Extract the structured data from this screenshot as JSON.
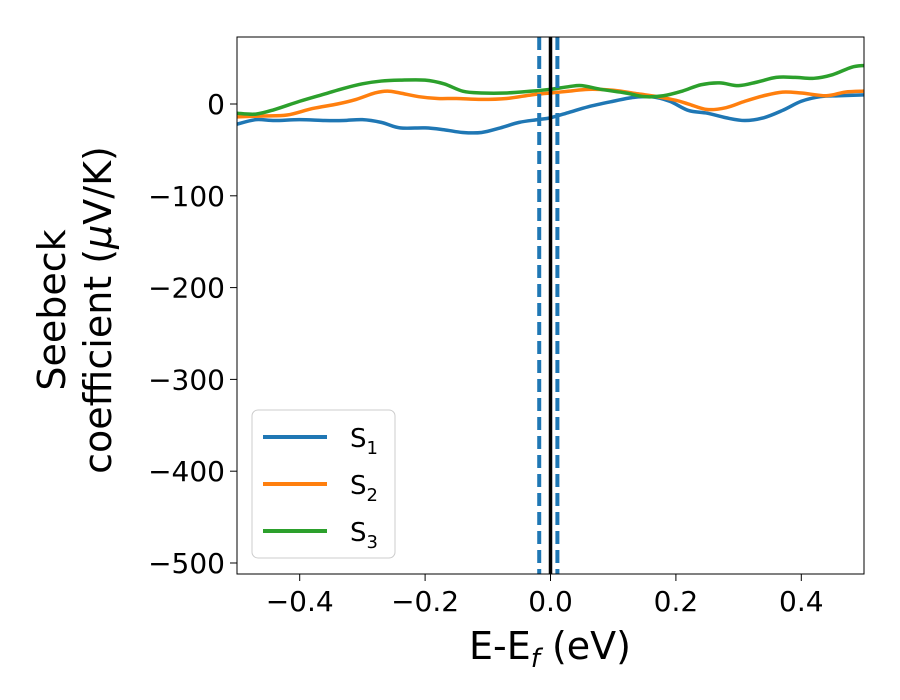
{
  "chart_data": {
    "type": "line",
    "xlabel": {
      "main": "E-E",
      "sub": "f",
      "unit": " (eV)"
    },
    "ylabel": {
      "line1": "Seebeck",
      "line2_main": "coefficient  (",
      "mu": "μ",
      "line2_unit": "V/K)"
    },
    "xlim": [
      -0.5,
      0.5
    ],
    "ylim": [
      -512,
      73
    ],
    "xticks": [
      -0.4,
      -0.2,
      0.0,
      0.2,
      0.4
    ],
    "xtick_labels": [
      "−0.4",
      "−0.2",
      "0.0",
      "0.2",
      "0.4"
    ],
    "yticks": [
      0,
      -100,
      -200,
      -300,
      -400,
      -500
    ],
    "ytick_labels": [
      "0",
      "−100",
      "−200",
      "−300",
      "−400",
      "−500"
    ],
    "legend_position": "lower-left",
    "vertical_lines": [
      {
        "x": 0.0,
        "style": "solid",
        "color": "#000000"
      },
      {
        "x": -0.018,
        "style": "dashed",
        "color": "#1f77b4"
      },
      {
        "x": 0.011,
        "style": "dashed",
        "color": "#1f77b4"
      }
    ],
    "series": [
      {
        "name": "S",
        "sub": "1",
        "color": "#1f77b4",
        "x": [
          -0.5,
          -0.47,
          -0.44,
          -0.4,
          -0.36,
          -0.33,
          -0.3,
          -0.27,
          -0.24,
          -0.2,
          -0.17,
          -0.14,
          -0.11,
          -0.08,
          -0.05,
          -0.02,
          0.0,
          0.03,
          0.06,
          0.1,
          0.13,
          0.16,
          0.19,
          0.22,
          0.25,
          0.28,
          0.31,
          0.34,
          0.37,
          0.4,
          0.43,
          0.46,
          0.5
        ],
        "y": [
          -22,
          -17,
          -18,
          -17,
          -18,
          -18,
          -17,
          -20,
          -26,
          -26,
          -28,
          -31,
          -31,
          -26,
          -20,
          -17,
          -15,
          -9,
          -3,
          3,
          7,
          8,
          3,
          -7,
          -10,
          -15,
          -18,
          -15,
          -7,
          3,
          8,
          9,
          10
        ]
      },
      {
        "name": "S",
        "sub": "2",
        "color": "#ff7f0e",
        "x": [
          -0.5,
          -0.46,
          -0.42,
          -0.38,
          -0.34,
          -0.31,
          -0.28,
          -0.26,
          -0.24,
          -0.21,
          -0.18,
          -0.15,
          -0.11,
          -0.07,
          -0.03,
          0.0,
          0.03,
          0.06,
          0.1,
          0.14,
          0.17,
          0.2,
          0.22,
          0.25,
          0.28,
          0.31,
          0.34,
          0.37,
          0.4,
          0.44,
          0.47,
          0.5
        ],
        "y": [
          -14,
          -13,
          -12,
          -5,
          0,
          5,
          12,
          14,
          12,
          8,
          6,
          6,
          5,
          6,
          10,
          12,
          14,
          16,
          15,
          11,
          8,
          4,
          0,
          -6,
          -4,
          3,
          9,
          13,
          12,
          9,
          13,
          14
        ]
      },
      {
        "name": "S",
        "sub": "3",
        "color": "#2ca02c",
        "x": [
          -0.5,
          -0.47,
          -0.44,
          -0.4,
          -0.36,
          -0.33,
          -0.3,
          -0.27,
          -0.24,
          -0.2,
          -0.17,
          -0.14,
          -0.11,
          -0.07,
          -0.03,
          0.0,
          0.03,
          0.05,
          0.08,
          0.12,
          0.15,
          0.18,
          0.21,
          0.24,
          0.27,
          0.3,
          0.33,
          0.36,
          0.39,
          0.42,
          0.45,
          0.48,
          0.5
        ],
        "y": [
          -10,
          -11,
          -6,
          3,
          11,
          17,
          22,
          25,
          26,
          26,
          22,
          14,
          12,
          12,
          14,
          16,
          19,
          20,
          16,
          12,
          8,
          9,
          14,
          21,
          23,
          20,
          24,
          29,
          29,
          28,
          32,
          40,
          42
        ]
      }
    ]
  }
}
